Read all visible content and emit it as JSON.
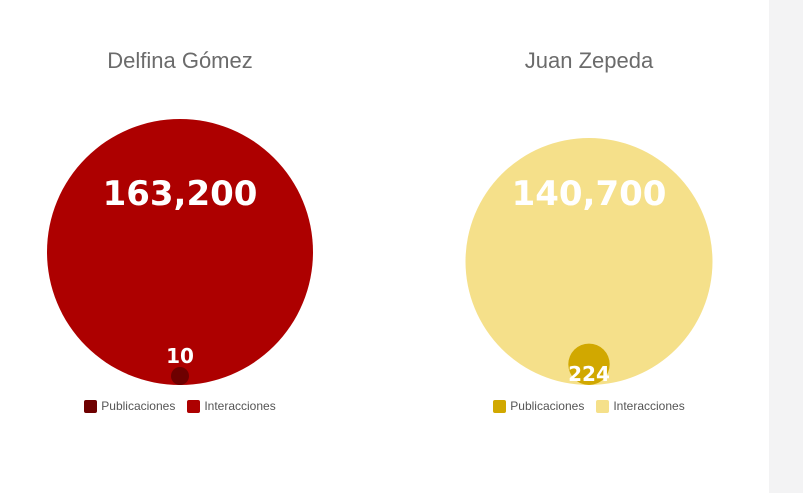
{
  "chart_data": [
    {
      "type": "nested-bubble",
      "title": "Delfina Gómez",
      "series": [
        {
          "name": "Interacciones",
          "value": 163200,
          "label": "163,200",
          "color": "#ad0000"
        },
        {
          "name": "Publicaciones",
          "value": 10,
          "label": "10",
          "color": "#6e0000"
        }
      ]
    },
    {
      "type": "nested-bubble",
      "title": "Juan Zepeda",
      "series": [
        {
          "name": "Interacciones",
          "value": 140700,
          "label": "140,700",
          "color": "#f5e08a"
        },
        {
          "name": "Publicaciones",
          "value": 224,
          "label": "224",
          "color": "#d1a800"
        }
      ]
    }
  ],
  "legend": [
    {
      "items": [
        {
          "label": "Publicaciones",
          "color": "#6e0000"
        },
        {
          "label": "Interacciones",
          "color": "#ad0000"
        }
      ]
    },
    {
      "items": [
        {
          "label": "Publicaciones",
          "color": "#d1a800"
        },
        {
          "label": "Interacciones",
          "color": "#f5e08a"
        }
      ]
    }
  ]
}
